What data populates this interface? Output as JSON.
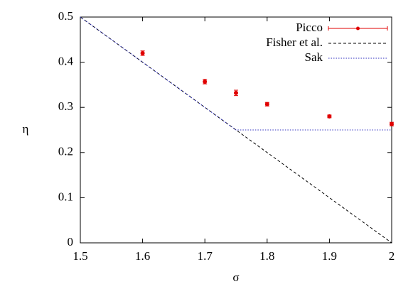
{
  "chart_data": {
    "type": "line",
    "xlabel": "σ",
    "ylabel": "η",
    "xlim": [
      1.5,
      2
    ],
    "ylim": [
      0,
      0.5
    ],
    "xticks": [
      1.5,
      1.6,
      1.7,
      1.8,
      1.9,
      2
    ],
    "yticks": [
      0,
      0.1,
      0.2,
      0.3,
      0.4,
      0.5
    ],
    "grid": false,
    "legend": "top-right",
    "series": [
      {
        "name": "Picco",
        "color": "#e00000",
        "style": "errorbar",
        "x": [
          1.6,
          1.7,
          1.75,
          1.8,
          1.9,
          2.0
        ],
        "values": [
          0.42,
          0.357,
          0.332,
          0.307,
          0.28,
          0.263
        ],
        "errors": [
          0.005,
          0.005,
          0.006,
          0.004,
          0.003,
          0.004
        ]
      },
      {
        "name": "Fisher et al.",
        "color": "#000000",
        "style": "dashed",
        "x": [
          1.5,
          2
        ],
        "values": [
          0.5,
          0
        ]
      },
      {
        "name": "Sak",
        "color": "#3030c0",
        "style": "dotted",
        "x": [
          1.5,
          1.75,
          2
        ],
        "values": [
          0.5,
          0.25,
          0.25
        ]
      }
    ]
  }
}
